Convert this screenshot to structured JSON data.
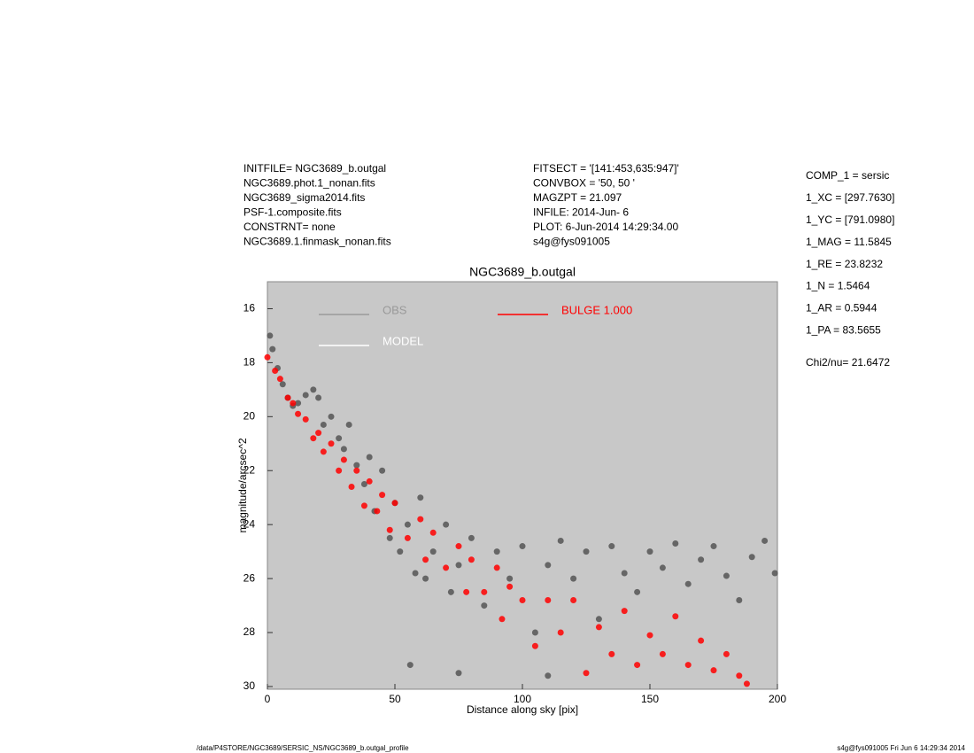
{
  "header": {
    "left": [
      "INITFILE= NGC3689_b.outgal",
      "NGC3689.phot.1_nonan.fits",
      "NGC3689_sigma2014.fits",
      "PSF-1.composite.fits",
      "CONSTRNT= none",
      "NGC3689.1.finmask_nonan.fits"
    ],
    "middle": [
      "FITSECT = '[141:453,635:947]'",
      "CONVBOX = '50, 50  '",
      "MAGZPT =            21.097",
      "INFILE: 2014-Jun- 6",
      "PLOT:  6-Jun-2014 14:29:34.00",
      "s4g@fys091005"
    ],
    "right": [
      "COMP_1  = sersic",
      "1_XC    = [297.7630]",
      "1_YC    = [791.0980]",
      "1_MAG   = 11.5845",
      "1_RE    = 23.8232",
      "1_N     = 1.5464",
      "1_AR    = 0.5944",
      "1_PA    = 83.5655"
    ],
    "chi2": "Chi2/nu=      21.6472"
  },
  "footer": {
    "left": "/data/P4STORE/NGC3689/SERSIC_NS/NGC3689_b.outgal_profile",
    "right": "s4g@fys091005  Fri Jun  6 14:29:34 2014"
  },
  "chart_data": {
    "type": "scatter",
    "title": "NGC3689_b.outgal",
    "x_label": "Distance along sky [pix]",
    "y_label": "magnitude/arcsec^2",
    "xlim": [
      0,
      200
    ],
    "xticks": [
      0,
      50,
      100,
      150,
      200
    ],
    "ylim": [
      30.1,
      15
    ],
    "yticks": [
      16,
      18,
      20,
      22,
      24,
      26,
      28,
      30
    ],
    "background": "#c8c8c8",
    "series": [
      {
        "name": "OBS",
        "color": "#555555",
        "legend_color": "#999999",
        "x": [
          1,
          2,
          4,
          6,
          8,
          10,
          12,
          15,
          18,
          20,
          22,
          25,
          28,
          30,
          32,
          35,
          38,
          40,
          42,
          45,
          48,
          50,
          52,
          55,
          58,
          60,
          62,
          65,
          70,
          72,
          75,
          80,
          85,
          90,
          95,
          100,
          105,
          110,
          115,
          120,
          125,
          130,
          135,
          140,
          145,
          150,
          155,
          160,
          165,
          170,
          175,
          180,
          185,
          190,
          195,
          199,
          56,
          75,
          110
        ],
        "values": [
          17,
          17.5,
          18.2,
          18.8,
          19.3,
          19.6,
          19.5,
          19.2,
          19,
          19.3,
          20.3,
          20,
          20.8,
          21.2,
          20.3,
          21.8,
          22.5,
          21.5,
          23.5,
          22,
          24.5,
          23.2,
          25,
          24,
          25.8,
          23,
          26,
          25,
          24,
          26.5,
          25.5,
          24.5,
          27,
          25,
          26,
          24.8,
          28,
          25.5,
          24.6,
          26,
          25,
          27.5,
          24.8,
          25.8,
          26.5,
          25,
          25.6,
          24.7,
          26.2,
          25.3,
          24.8,
          25.9,
          26.8,
          25.2,
          24.6,
          25.8,
          29.2,
          29.5,
          29.6
        ]
      },
      {
        "name": "MODEL",
        "color": "#ffffff",
        "legend_color": "#ffffff",
        "x": [],
        "values": []
      },
      {
        "name": "BULGE  1.000",
        "color": "#ff0000",
        "legend_color": "#ff0000",
        "x": [
          0,
          3,
          5,
          8,
          10,
          12,
          15,
          18,
          20,
          22,
          25,
          28,
          30,
          33,
          35,
          38,
          40,
          43,
          45,
          48,
          50,
          55,
          60,
          62,
          65,
          70,
          75,
          78,
          80,
          85,
          90,
          92,
          95,
          100,
          105,
          110,
          115,
          120,
          125,
          130,
          135,
          140,
          145,
          150,
          155,
          160,
          165,
          170,
          175,
          180,
          185,
          188
        ],
        "values": [
          17.8,
          18.3,
          18.6,
          19.3,
          19.5,
          19.9,
          20.1,
          20.8,
          20.6,
          21.3,
          21,
          22,
          21.6,
          22.6,
          22,
          23.3,
          22.4,
          23.5,
          22.9,
          24.2,
          23.2,
          24.5,
          23.8,
          25.3,
          24.3,
          25.6,
          24.8,
          26.5,
          25.3,
          26.5,
          25.6,
          27.5,
          26.3,
          26.8,
          28.5,
          26.8,
          28,
          26.8,
          29.5,
          27.8,
          28.8,
          27.2,
          29.2,
          28.1,
          28.8,
          27.4,
          29.2,
          28.3,
          29.4,
          28.8,
          29.6,
          29.9
        ]
      }
    ]
  }
}
